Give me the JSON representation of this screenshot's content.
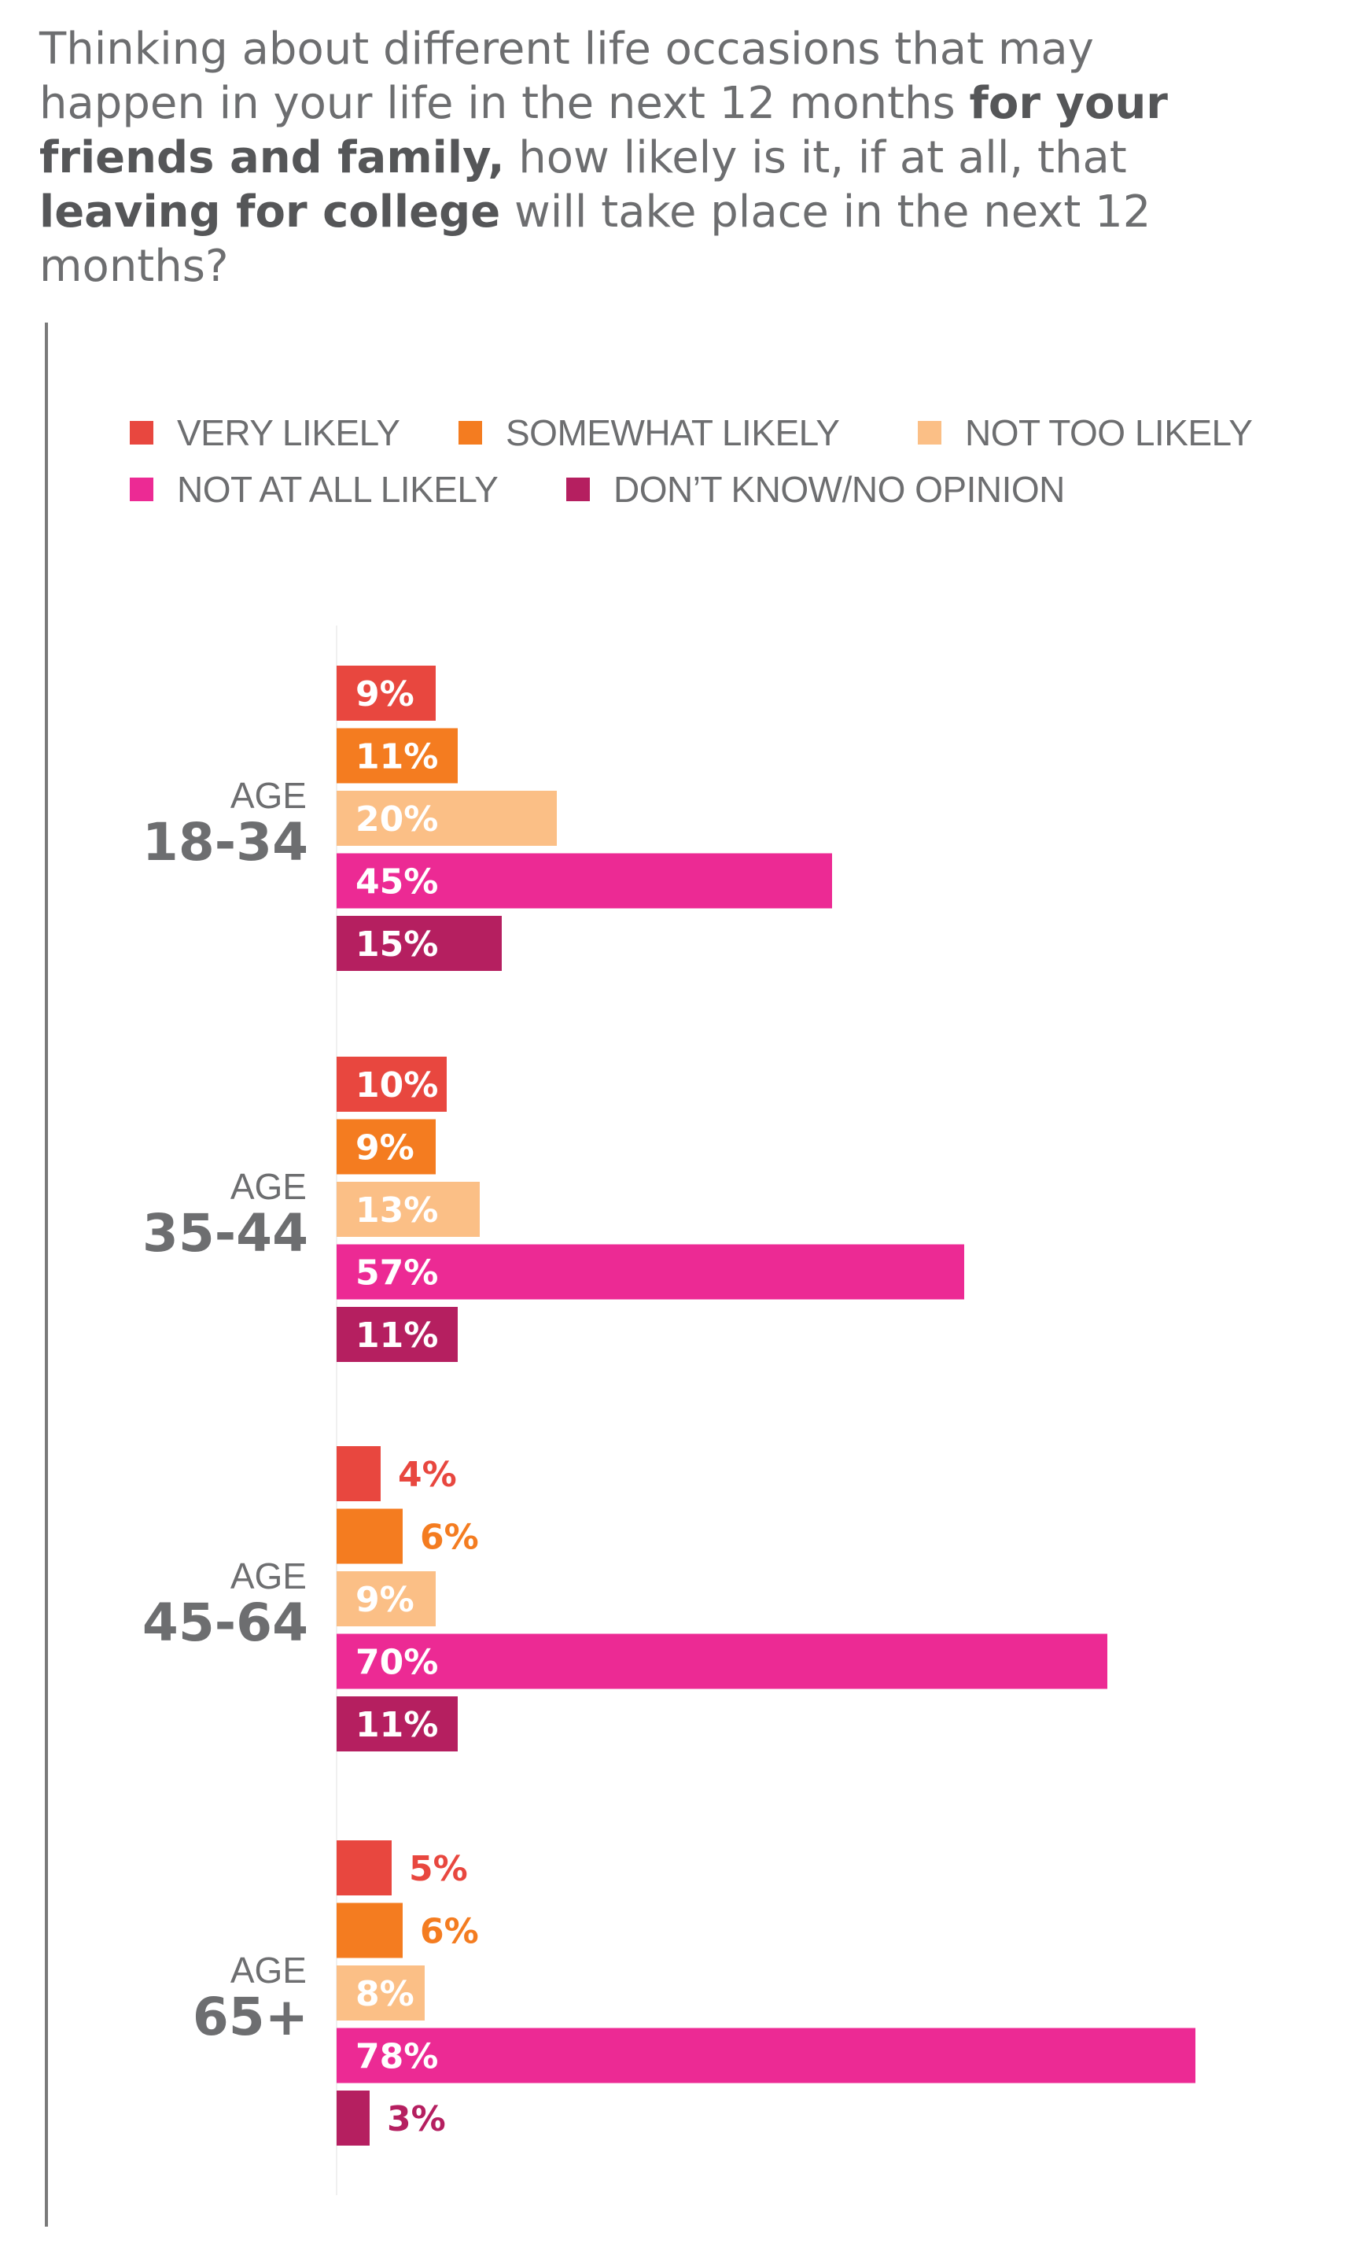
{
  "title": {
    "segments": [
      {
        "text": "Thinking about different life occasions that may happen in your life in the next 12 months ",
        "bold": false
      },
      {
        "text": "for your friends and family,",
        "bold": true
      },
      {
        "text": " how likely is it, if at all, that ",
        "bold": false
      },
      {
        "text": "leaving for college",
        "bold": true
      },
      {
        "text": " will take place in the next 12 months?",
        "bold": false
      }
    ]
  },
  "chart_data": {
    "type": "bar",
    "orientation": "horizontal",
    "grouped": true,
    "unit": "%",
    "categories": [
      {
        "prefix": "AGE",
        "label": "18-34"
      },
      {
        "prefix": "AGE",
        "label": "35-44"
      },
      {
        "prefix": "AGE",
        "label": "45-64"
      },
      {
        "prefix": "AGE",
        "label": "65+"
      }
    ],
    "series": [
      {
        "name": "VERY LIKELY",
        "color": "#e8473f",
        "values": [
          9,
          10,
          4,
          5
        ]
      },
      {
        "name": "SOMEWHAT LIKELY",
        "color": "#f47c20",
        "values": [
          11,
          9,
          6,
          6
        ]
      },
      {
        "name": "NOT TOO LIKELY",
        "color": "#fbbf86",
        "values": [
          20,
          13,
          9,
          8
        ]
      },
      {
        "name": "NOT AT ALL LIKELY",
        "color": "#ec2a94",
        "values": [
          45,
          57,
          70,
          78
        ]
      },
      {
        "name": "DON’T KNOW/NO OPINION",
        "color": "#b51f60",
        "values": [
          15,
          11,
          11,
          3
        ]
      }
    ],
    "xlim": [
      0,
      78
    ],
    "legend_position": "top",
    "grid": false,
    "data_labels": true
  }
}
